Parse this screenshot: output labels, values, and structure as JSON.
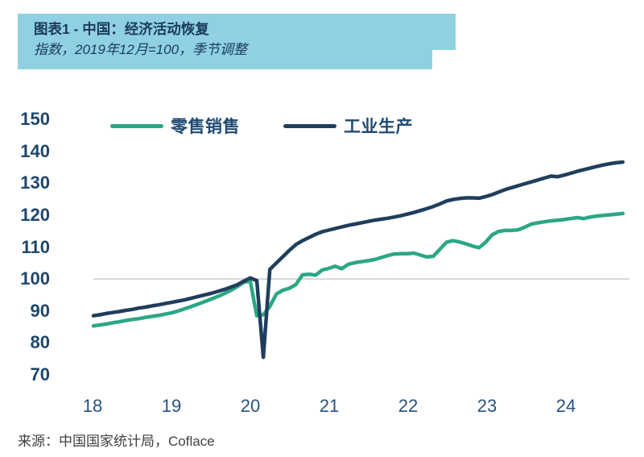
{
  "header": {
    "title": "图表1 - 中国：经济活动恢复",
    "subtitle": "指数，2019年12月=100，季节调整"
  },
  "legend": [
    {
      "label": "零售销售",
      "color": "#2BA784"
    },
    {
      "label": "工业生产",
      "color": "#1F3E5C"
    }
  ],
  "source_text": "来源：中国国家统计局，Coflace",
  "colors": {
    "header_bg": "#8FD1E2",
    "title_text": "#1C3A5E",
    "retail_line": "#2BA784",
    "industrial_line": "#1F3E5C",
    "tick_label": "#1E466B",
    "x_tick_label": "#27537E",
    "gridline": "#C9C9C9",
    "source_text": "#3D4144"
  },
  "chart_data": {
    "type": "line",
    "title": "图表1 - 中国：经济活动恢复",
    "subtitle": "指数，2019年12月=100，季节调整",
    "x_unit": "month",
    "x_start": "2018-01",
    "x_end": "2024-10",
    "x_tick_labels": [
      "18",
      "19",
      "20",
      "21",
      "22",
      "23",
      "24"
    ],
    "y_ticks": [
      70,
      80,
      90,
      100,
      110,
      120,
      130,
      140,
      150
    ],
    "ylim": [
      70,
      150
    ],
    "gridline_at": 100,
    "grid": "single-horizontal-line-at-100",
    "legend_position": "top",
    "series": [
      {
        "name": "零售销售",
        "color": "#2BA784",
        "values": [
          85.3,
          85.6,
          85.9,
          86.3,
          86.6,
          87.0,
          87.3,
          87.6,
          88.0,
          88.3,
          88.6,
          89.0,
          89.4,
          90.0,
          90.7,
          91.4,
          92.1,
          92.9,
          93.7,
          94.5,
          95.4,
          96.4,
          97.6,
          99.0,
          99.3,
          88.5,
          88.8,
          91.4,
          95.3,
          96.5,
          97.1,
          98.3,
          101.3,
          101.5,
          101.2,
          102.8,
          103.3,
          104.0,
          103.2,
          104.6,
          105.1,
          105.4,
          105.7,
          106.1,
          106.7,
          107.3,
          107.8,
          107.9,
          107.9,
          108.1,
          107.5,
          106.9,
          107.1,
          109.3,
          111.5,
          112.0,
          111.6,
          111.0,
          110.3,
          109.8,
          111.5,
          113.8,
          114.9,
          115.2,
          115.2,
          115.4,
          116.2,
          117.2,
          117.6,
          117.9,
          118.2,
          118.4,
          118.6,
          118.9,
          119.2,
          118.9,
          119.4,
          119.7,
          119.9,
          120.1,
          120.3,
          120.5
        ]
      },
      {
        "name": "工业生产",
        "color": "#1F3E5C",
        "values": [
          88.5,
          88.8,
          89.2,
          89.5,
          89.8,
          90.2,
          90.5,
          90.9,
          91.2,
          91.6,
          91.9,
          92.3,
          92.7,
          93.1,
          93.5,
          94.0,
          94.5,
          95.0,
          95.5,
          96.1,
          96.7,
          97.4,
          98.2,
          99.3,
          100.3,
          99.5,
          75.5,
          103.0,
          105.0,
          107.0,
          109.0,
          110.8,
          112.0,
          113.0,
          114.0,
          114.8,
          115.3,
          115.8,
          116.3,
          116.8,
          117.2,
          117.6,
          118.0,
          118.4,
          118.7,
          119.0,
          119.4,
          119.8,
          120.3,
          120.8,
          121.4,
          122.0,
          122.7,
          123.5,
          124.4,
          124.9,
          125.2,
          125.4,
          125.4,
          125.3,
          125.8,
          126.4,
          127.2,
          128.0,
          128.6,
          129.2,
          129.8,
          130.4,
          131.0,
          131.6,
          132.2,
          132.0,
          132.5,
          133.1,
          133.7,
          134.2,
          134.7,
          135.2,
          135.7,
          136.1,
          136.4,
          136.6
        ]
      }
    ]
  }
}
